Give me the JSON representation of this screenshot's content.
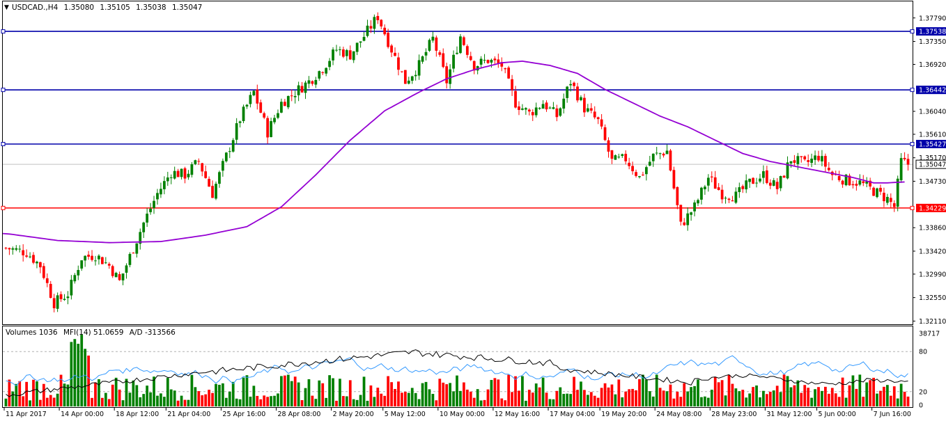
{
  "header": {
    "symbol": "USDCAD.,H4",
    "open": "1.35080",
    "high": "1.35105",
    "low": "1.35038",
    "close": "1.35047"
  },
  "indicator_header": {
    "volumes": "Volumes 1036",
    "mfi": "MFI(14) 51.0659",
    "ad": "A/D -313566"
  },
  "colors": {
    "up": "#008000",
    "down": "#ff0000",
    "ma": "#9400d3",
    "level": "#0000aa",
    "support": "#ff0000",
    "mfi": "#3399ff",
    "ad": "#000000"
  },
  "chart_data": [
    {
      "type": "candlestick",
      "title": "USDCAD.,H4",
      "x_tick_labels": [
        "11 Apr 2017",
        "14 Apr 00:00",
        "18 Apr 12:00",
        "21 Apr 04:00",
        "25 Apr 16:00",
        "28 Apr 08:00",
        "2 May 20:00",
        "5 May 12:00",
        "10 May 00:00",
        "12 May 16:00",
        "17 May 04:00",
        "19 May 20:00",
        "24 May 08:00",
        "28 May 23:00",
        "31 May 12:00",
        "5 Jun 00:00",
        "7 Jun 16:00"
      ],
      "y_ticks": [
        1.3211,
        1.3255,
        1.3299,
        1.3342,
        1.3386,
        1.3473,
        1.3517,
        1.3561,
        1.3604,
        1.3692,
        1.3735,
        1.3779
      ],
      "y_tick_labels": [
        "1.32110",
        "1.32550",
        "1.32990",
        "1.33420",
        "1.33860",
        "1.34730",
        "1.35170",
        "1.35610",
        "1.36040",
        "1.36920",
        "1.37350",
        "1.37790"
      ],
      "ylim": [
        1.3205,
        1.381
      ],
      "horizontal_levels": [
        {
          "value": 1.37538,
          "label": "1.37538",
          "role": "resistance"
        },
        {
          "value": 1.36442,
          "label": "1.36442",
          "role": "resistance"
        },
        {
          "value": 1.35427,
          "label": "1.35427",
          "role": "resistance"
        },
        {
          "value": 1.34229,
          "label": "1.34229",
          "role": "support"
        }
      ],
      "current_price": {
        "value": 1.35047,
        "label": "1.35047"
      },
      "close_path": [
        [
          0,
          1.3348
        ],
        [
          6,
          1.334
        ],
        [
          10,
          1.3315
        ],
        [
          14,
          1.3245
        ],
        [
          18,
          1.3262
        ],
        [
          22,
          1.333
        ],
        [
          26,
          1.3335
        ],
        [
          30,
          1.3315
        ],
        [
          33,
          1.3285
        ],
        [
          36,
          1.3332
        ],
        [
          40,
          1.3395
        ],
        [
          44,
          1.345
        ],
        [
          48,
          1.349
        ],
        [
          52,
          1.3485
        ],
        [
          56,
          1.351
        ],
        [
          60,
          1.345
        ],
        [
          64,
          1.352
        ],
        [
          68,
          1.359
        ],
        [
          72,
          1.364
        ],
        [
          76,
          1.3565
        ],
        [
          80,
          1.362
        ],
        [
          84,
          1.364
        ],
        [
          88,
          1.366
        ],
        [
          92,
          1.3685
        ],
        [
          96,
          1.372
        ],
        [
          100,
          1.371
        ],
        [
          104,
          1.3745
        ],
        [
          108,
          1.3782
        ],
        [
          112,
          1.372
        ],
        [
          116,
          1.366
        ],
        [
          120,
          1.369
        ],
        [
          124,
          1.374
        ],
        [
          128,
          1.366
        ],
        [
          132,
          1.3745
        ],
        [
          136,
          1.369
        ],
        [
          140,
          1.37
        ],
        [
          144,
          1.369
        ],
        [
          148,
          1.362
        ],
        [
          152,
          1.36
        ],
        [
          156,
          1.362
        ],
        [
          160,
          1.3595
        ],
        [
          164,
          1.366
        ],
        [
          168,
          1.361
        ],
        [
          172,
          1.3585
        ],
        [
          176,
          1.351
        ],
        [
          180,
          1.3515
        ],
        [
          184,
          1.348
        ],
        [
          188,
          1.352
        ],
        [
          192,
          1.353
        ],
        [
          196,
          1.339
        ],
        [
          200,
          1.3425
        ],
        [
          204,
          1.348
        ],
        [
          208,
          1.345
        ],
        [
          212,
          1.3445
        ],
        [
          216,
          1.347
        ],
        [
          220,
          1.3485
        ],
        [
          224,
          1.346
        ],
        [
          228,
          1.3515
        ],
        [
          232,
          1.3505
        ],
        [
          236,
          1.352
        ],
        [
          240,
          1.3485
        ],
        [
          244,
          1.3475
        ],
        [
          248,
          1.347
        ],
        [
          252,
          1.3455
        ],
        [
          256,
          1.344
        ],
        [
          258,
          1.3425
        ],
        [
          260,
          1.351
        ],
        [
          262,
          1.3505
        ]
      ],
      "moving_average": [
        [
          0,
          1.3375
        ],
        [
          15,
          1.3362
        ],
        [
          30,
          1.3358
        ],
        [
          45,
          1.336
        ],
        [
          58,
          1.3372
        ],
        [
          70,
          1.3388
        ],
        [
          80,
          1.3425
        ],
        [
          90,
          1.3485
        ],
        [
          100,
          1.355
        ],
        [
          110,
          1.3605
        ],
        [
          120,
          1.364
        ],
        [
          128,
          1.3665
        ],
        [
          136,
          1.3682
        ],
        [
          144,
          1.3695
        ],
        [
          150,
          1.3698
        ],
        [
          158,
          1.369
        ],
        [
          166,
          1.3675
        ],
        [
          174,
          1.3645
        ],
        [
          182,
          1.362
        ],
        [
          190,
          1.3595
        ],
        [
          198,
          1.3575
        ],
        [
          206,
          1.355
        ],
        [
          214,
          1.3525
        ],
        [
          222,
          1.351
        ],
        [
          230,
          1.35
        ],
        [
          238,
          1.349
        ],
        [
          246,
          1.348
        ],
        [
          252,
          1.347
        ],
        [
          256,
          1.347
        ],
        [
          262,
          1.3472
        ]
      ]
    },
    {
      "type": "bar",
      "title": "Volumes 1036 MFI(14) 51.0659 A/D -313566",
      "series": [
        {
          "name": "Volumes",
          "pattern": "alternating green/red volume bars"
        },
        {
          "name": "MFI(14)",
          "last": 51.0659
        },
        {
          "name": "A/D",
          "last": -313566
        }
      ],
      "y_tick_labels": [
        "38717",
        "80",
        "20",
        "0"
      ],
      "mfi_levels": [
        80,
        20
      ]
    }
  ]
}
